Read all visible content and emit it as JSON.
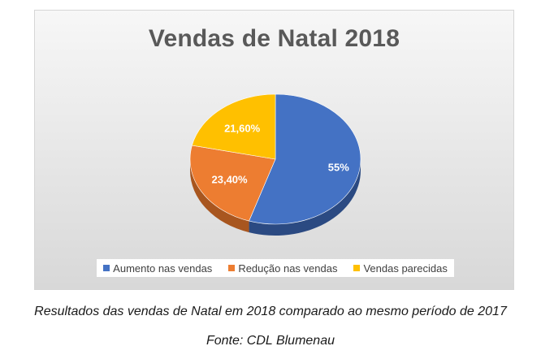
{
  "chart_data": {
    "type": "pie",
    "title": "Vendas de Natal 2018",
    "slices": [
      {
        "name": "Aumento nas vendas",
        "value": 55,
        "label": "55%",
        "color": "#4472C4",
        "side_color": "#2B4A82"
      },
      {
        "name": "Redução nas vendas",
        "value": 23.4,
        "label": "23,40%",
        "color": "#ED7D31",
        "side_color": "#A8561F"
      },
      {
        "name": "Vendas parecidas",
        "value": 21.6,
        "label": "21,60%",
        "color": "#FFC000",
        "side_color": "#B38600"
      }
    ],
    "legend_position": "bottom",
    "style": "3d"
  },
  "caption": "Resultados das vendas de Natal em 2018 comparado ao mesmo período de 2017",
  "source": "Fonte: CDL Blumenau"
}
